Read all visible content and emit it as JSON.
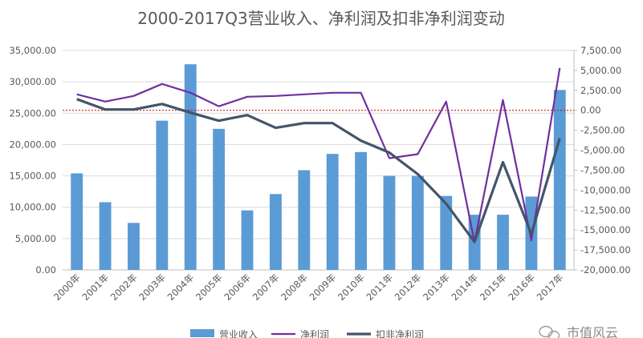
{
  "chart_data": {
    "type": "bar",
    "title": "2000-2017Q3营业收入、净利润及扣非净利润变动",
    "categories": [
      "2000年",
      "2001年",
      "2002年",
      "2003年",
      "2004年",
      "2005年",
      "2006年",
      "2007年",
      "2008年",
      "2009年",
      "2010年",
      "2011年",
      "2012年",
      "2013年",
      "2014年",
      "2015年",
      "2016年",
      "2017年"
    ],
    "series": [
      {
        "name": "营业收入",
        "kind": "bar",
        "axis": "left",
        "color": "#5b9bd5",
        "values": [
          15400,
          10800,
          7500,
          23800,
          32800,
          22500,
          9500,
          12100,
          15900,
          18500,
          18800,
          15000,
          15000,
          11800,
          8800,
          8800,
          11700,
          28700
        ]
      },
      {
        "name": "净利润",
        "kind": "line",
        "axis": "right",
        "color": "#7030a0",
        "values": [
          2000,
          1100,
          1800,
          3300,
          2200,
          500,
          1700,
          1800,
          2000,
          2200,
          2200,
          -6000,
          -5500,
          1100,
          -16500,
          1300,
          -16300,
          5300
        ]
      },
      {
        "name": "扣非净利润",
        "kind": "line",
        "axis": "right",
        "color": "#44546a",
        "values": [
          1400,
          100,
          100,
          800,
          -300,
          -1300,
          -600,
          -2200,
          -1600,
          -1600,
          -3800,
          -5300,
          -8000,
          -11700,
          -16500,
          -6500,
          -15500,
          -3500
        ]
      }
    ],
    "left_axis": {
      "min": 0,
      "max": 35000,
      "step": 5000,
      "ticks": [
        "0.00",
        "5,000.00",
        "10,000.00",
        "15,000.00",
        "20,000.00",
        "25,000.00",
        "30,000.00",
        "35,000.00"
      ]
    },
    "right_axis": {
      "min": -20000,
      "max": 7500,
      "step": 2500,
      "ticks": [
        "-20,000.00",
        "-17,500.00",
        "-15,000.00",
        "-12,500.00",
        "-10,000.00",
        "-7,500.00",
        "-5,000.00",
        "-2,500.00",
        "0.00",
        "2,500.00",
        "5,000.00",
        "7,500.00"
      ]
    },
    "zero_line": {
      "axis": "right",
      "value": 0,
      "color": "#c00000"
    },
    "legend_position": "bottom"
  },
  "watermark": "市值风云"
}
